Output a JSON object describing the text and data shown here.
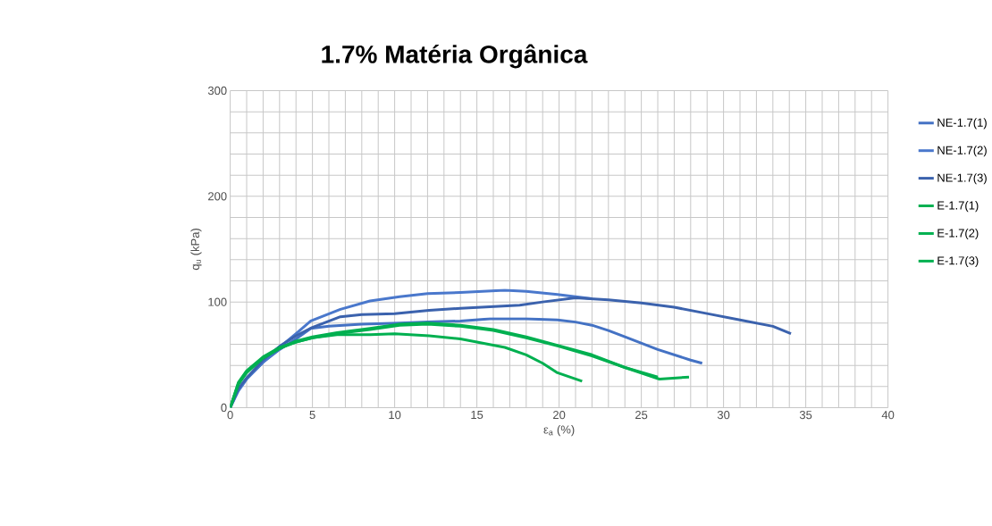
{
  "chart_data": {
    "type": "line",
    "title": "1.7% Matéria Orgânica",
    "xlabel": "ε$_{a}$ (%)",
    "ylabel": "q$_{u}$ (kPa)",
    "xlim": [
      0,
      40
    ],
    "ylim": [
      0,
      300
    ],
    "xticks": [
      0,
      5,
      10,
      15,
      20,
      25,
      30,
      35,
      40
    ],
    "yticks": [
      0,
      100,
      200,
      300
    ],
    "grid": true,
    "legend": "right",
    "marker": "none",
    "line_style": "solid",
    "series": [
      {
        "name": "NE-1.7(1)",
        "color": "#4472c4",
        "x": [
          0,
          0.5,
          1,
          2,
          3,
          4,
          4.9,
          6,
          8,
          10.3,
          12,
          14,
          15.8,
          18,
          19.9,
          21,
          22,
          23,
          24,
          25,
          26,
          27,
          28,
          28.7
        ],
        "values": [
          0,
          18,
          28,
          43,
          55,
          65,
          75,
          77,
          79,
          80,
          81,
          82,
          84,
          84,
          83,
          81,
          78,
          73,
          67,
          61,
          55,
          50,
          45,
          42
        ]
      },
      {
        "name": "NE-1.7(2)",
        "color": "#4a78cc",
        "x": [
          0,
          0.5,
          1,
          2,
          3,
          4,
          4.9,
          6.7,
          8.5,
          10.3,
          12,
          14,
          16.7,
          18,
          19.9,
          21,
          22
        ],
        "values": [
          0,
          16,
          27,
          43,
          57,
          70,
          82,
          93,
          101,
          105,
          108,
          109,
          111,
          110,
          107,
          105,
          103
        ]
      },
      {
        "name": "NE-1.7(3)",
        "color": "#3b62ad",
        "x": [
          0,
          0.5,
          1,
          2,
          3,
          4,
          5,
          6.7,
          8,
          10,
          12.1,
          14,
          17.6,
          19,
          21,
          23,
          25,
          27,
          29,
          31,
          33,
          34.1
        ],
        "values": [
          0,
          18,
          28,
          45,
          58,
          68,
          76,
          86,
          88,
          89,
          92,
          94,
          97,
          100,
          104,
          102,
          99,
          95,
          89,
          83,
          77,
          70
        ]
      },
      {
        "name": "E-1.7(1)",
        "color": "#00b050",
        "x": [
          0,
          0.5,
          1,
          2,
          3,
          4,
          5,
          6.5,
          8.5,
          10,
          12.1,
          14,
          16.7,
          18,
          19,
          19.9,
          21.4
        ],
        "values": [
          0,
          24,
          35,
          48,
          57,
          62,
          66,
          69,
          69,
          70,
          68,
          65,
          57,
          50,
          42,
          33,
          25
        ]
      },
      {
        "name": "E-1.7(2)",
        "color": "#00b050",
        "x": [
          0,
          0.5,
          1,
          2,
          3,
          4,
          5,
          6.5,
          8.5,
          10.3,
          12,
          14,
          16,
          18,
          19.9,
          22,
          24,
          26.1,
          27.9
        ],
        "values": [
          0,
          22,
          33,
          47,
          56,
          63,
          67,
          71,
          75,
          79,
          80,
          78,
          74,
          67,
          59,
          50,
          38,
          27,
          29
        ]
      },
      {
        "name": "E-1.7(3)",
        "color": "#00b050",
        "x": [
          0,
          0.5,
          1,
          2,
          3,
          4,
          5,
          6.5,
          8.5,
          10.3,
          12,
          14,
          16,
          18,
          20,
          22,
          24,
          26
        ],
        "values": [
          0,
          23,
          34,
          47,
          56,
          62,
          66,
          70,
          74,
          78,
          79,
          77,
          73,
          66,
          58,
          49,
          38,
          29
        ]
      }
    ]
  }
}
